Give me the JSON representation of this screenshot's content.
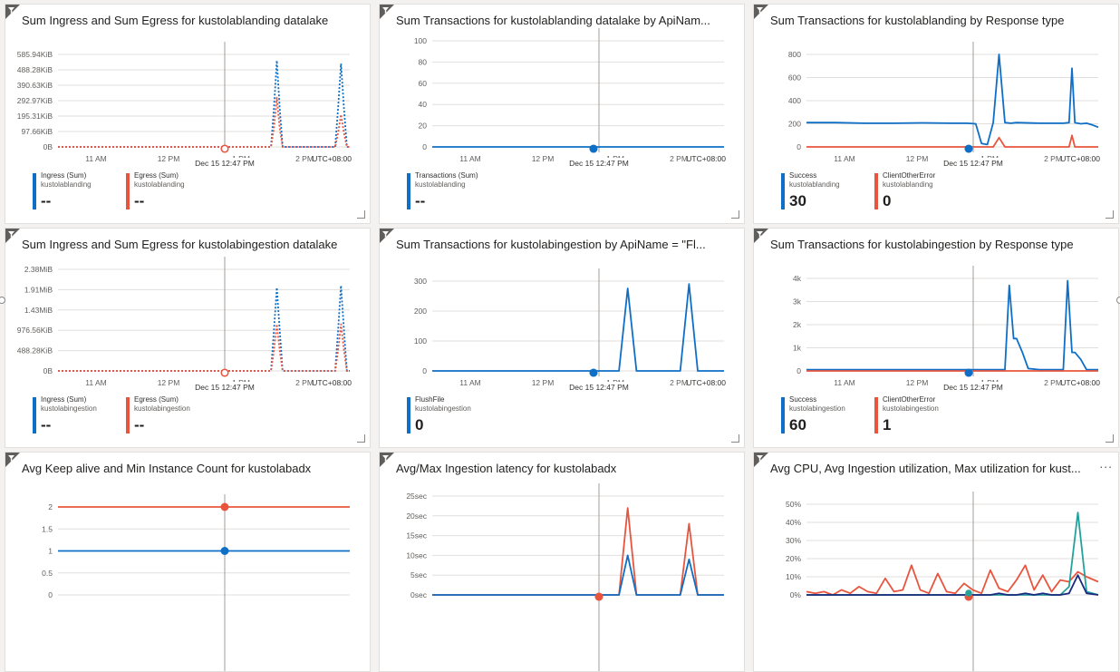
{
  "x_ticks": [
    "11 AM",
    "12 PM",
    "1 PM",
    "2 PM"
  ],
  "timezone": "UTC+08:00",
  "cursor_label": "Dec 15 12:47 PM",
  "more_label": "...",
  "colors": {
    "blue": "#0f6fc6",
    "red": "#e8553e",
    "teal": "#23a29b",
    "navy": "#1b2a7e",
    "grid": "#e1dfdd",
    "cursor": "#a19f9d"
  },
  "tiles": [
    {
      "title": "Sum Ingress and Sum Egress for kustolablanding datalake",
      "chart_data": {
        "type": "line",
        "y_ticks": [
          "585.94KiB",
          "488.28KiB",
          "390.63KiB",
          "292.97KiB",
          "195.31KiB",
          "97.66KiB",
          "0B"
        ],
        "ylim": [
          0,
          600
        ],
        "x": [
          0,
          72,
          73,
          74,
          75,
          76,
          77,
          78,
          85,
          95,
          96,
          97,
          98,
          99,
          100
        ],
        "series": [
          {
            "name": "Ingress (Sum)",
            "sub": "kustolablanding",
            "value": "--",
            "color": "#0f6fc6",
            "dashed": true,
            "values": [
              0,
              0,
              0,
              250,
              560,
              250,
              0,
              0,
              0,
              0,
              250,
              540,
              250,
              0,
              0
            ]
          },
          {
            "name": "Egress (Sum)",
            "sub": "kustolablanding",
            "value": "--",
            "color": "#e8553e",
            "dashed": true,
            "values": [
              0,
              0,
              0,
              120,
              320,
              120,
              0,
              0,
              0,
              0,
              90,
              210,
              90,
              0,
              0
            ]
          }
        ]
      }
    },
    {
      "title": "Sum Transactions for kustolablanding datalake by ApiNam...",
      "chart_data": {
        "type": "line",
        "y_ticks": [
          "100",
          "80",
          "60",
          "40",
          "20",
          "0"
        ],
        "ylim": [
          0,
          100
        ],
        "x": [
          0,
          100
        ],
        "series": [
          {
            "name": "Transactions (Sum)",
            "sub": "kustolablanding",
            "value": "--",
            "color": "#0f6fc6",
            "dashed": false,
            "values": [
              0,
              0
            ]
          }
        ]
      }
    },
    {
      "title": "Sum Transactions for kustolablanding by Response type",
      "chart_data": {
        "type": "line",
        "y_ticks": [
          "800",
          "600",
          "400",
          "200",
          "0"
        ],
        "ylim": [
          0,
          800
        ],
        "x": [
          0,
          10,
          20,
          30,
          40,
          50,
          55,
          58,
          60,
          62,
          64,
          66,
          68,
          70,
          72,
          80,
          88,
          90,
          91,
          92,
          94,
          96,
          98,
          100
        ],
        "series": [
          {
            "name": "Success",
            "sub": "kustolablanding",
            "value": "30",
            "color": "#0f6fc6",
            "dashed": false,
            "values": [
              210,
              210,
              205,
              205,
              208,
              205,
              205,
              200,
              30,
              20,
              210,
              800,
              210,
              205,
              210,
              205,
              205,
              210,
              680,
              210,
              200,
              205,
              190,
              170
            ]
          },
          {
            "name": "ClientOtherError",
            "sub": "kustolablanding",
            "value": "0",
            "color": "#e8553e",
            "dashed": false,
            "values": [
              0,
              0,
              0,
              0,
              0,
              0,
              0,
              0,
              0,
              0,
              0,
              80,
              0,
              0,
              0,
              0,
              0,
              0,
              100,
              0,
              0,
              0,
              0,
              0
            ]
          }
        ]
      }
    },
    {
      "title": "Sum Ingress and Sum Egress for kustolabingestion datalake",
      "chart_data": {
        "type": "line",
        "y_ticks": [
          "2.38MiB",
          "1.91MiB",
          "1.43MiB",
          "976.56KiB",
          "488.28KiB",
          "0B"
        ],
        "ylim": [
          0,
          2500
        ],
        "x": [
          0,
          72,
          73,
          74,
          75,
          76,
          77,
          78,
          85,
          95,
          96,
          97,
          98,
          99,
          100
        ],
        "series": [
          {
            "name": "Ingress (Sum)",
            "sub": "kustolabingestion",
            "value": "--",
            "color": "#0f6fc6",
            "dashed": true,
            "values": [
              0,
              0,
              0,
              1000,
              2050,
              1000,
              0,
              0,
              0,
              0,
              1000,
              2100,
              1000,
              0,
              0
            ]
          },
          {
            "name": "Egress (Sum)",
            "sub": "kustolabingestion",
            "value": "--",
            "color": "#e8553e",
            "dashed": true,
            "values": [
              0,
              0,
              0,
              500,
              1150,
              500,
              0,
              0,
              0,
              0,
              500,
              1150,
              500,
              0,
              0
            ]
          }
        ]
      }
    },
    {
      "title": "Sum Transactions for kustolabingestion by ApiName = \"Fl...",
      "chart_data": {
        "type": "line",
        "y_ticks": [
          "300",
          "200",
          "100",
          "0"
        ],
        "ylim": [
          0,
          310
        ],
        "x": [
          0,
          60,
          64,
          67,
          70,
          80,
          85,
          88,
          91,
          95,
          100
        ],
        "series": [
          {
            "name": "FlushFile",
            "sub": "kustolabingestion",
            "value": "0",
            "color": "#0f6fc6",
            "dashed": false,
            "values": [
              0,
              0,
              0,
              285,
              0,
              0,
              0,
              300,
              0,
              0,
              0
            ]
          }
        ]
      }
    },
    {
      "title": "Sum Transactions for kustolabingestion by Response type",
      "chart_data": {
        "type": "line",
        "y_ticks": [
          "4k",
          "3k",
          "2k",
          "1k",
          "0"
        ],
        "ylim": [
          0,
          4000
        ],
        "x": [
          0,
          40,
          60,
          63,
          66,
          68,
          69.5,
          71,
          72,
          74,
          76,
          80,
          88,
          89.5,
          91,
          92,
          94,
          96,
          98,
          100
        ],
        "series": [
          {
            "name": "Success",
            "sub": "kustolabingestion",
            "value": "60",
            "color": "#0f6fc6",
            "dashed": false,
            "values": [
              50,
              50,
              50,
              50,
              50,
              50,
              3700,
              1400,
              1400,
              800,
              100,
              50,
              50,
              3900,
              800,
              800,
              500,
              50,
              50,
              50
            ]
          },
          {
            "name": "ClientOtherError",
            "sub": "kustolabingestion",
            "value": "1",
            "color": "#e8553e",
            "dashed": false,
            "values": [
              0,
              0,
              0,
              0,
              0,
              0,
              0,
              0,
              0,
              0,
              0,
              0,
              0,
              0,
              0,
              0,
              0,
              0,
              0,
              0
            ]
          }
        ]
      }
    },
    {
      "title": "Avg Keep alive and Min Instance Count for kustolabadx",
      "chart_data": {
        "type": "line",
        "y_ticks": [
          "2",
          "1.5",
          "1",
          "0.5",
          "0"
        ],
        "ylim": [
          0,
          2
        ],
        "x": [
          0,
          100
        ],
        "series": [
          {
            "name": "",
            "color": "#e8553e",
            "values": [
              2,
              2
            ]
          },
          {
            "name": "",
            "color": "#0f6fc6",
            "values": [
              1,
              1
            ]
          }
        ]
      }
    },
    {
      "title": "Avg/Max Ingestion latency for kustolabadx",
      "chart_data": {
        "type": "line",
        "y_ticks": [
          "25sec",
          "20sec",
          "15sec",
          "10sec",
          "5sec",
          "0sec"
        ],
        "ylim": [
          0,
          25
        ],
        "x": [
          0,
          60,
          64,
          67,
          70,
          80,
          85,
          88,
          91,
          95,
          100
        ],
        "series": [
          {
            "name": "",
            "color": "#e8553e",
            "values": [
              0,
              0,
              0,
              22,
              0,
              0,
              0,
              18,
              0,
              0,
              0
            ]
          },
          {
            "name": "",
            "color": "#0f6fc6",
            "values": [
              0,
              0,
              0,
              10,
              0,
              0,
              0,
              9,
              0,
              0,
              0
            ]
          }
        ]
      }
    },
    {
      "title": "Avg CPU, Avg Ingestion utilization, Max utilization for kust...",
      "chart_data": {
        "type": "line",
        "y_ticks": [
          "50%",
          "40%",
          "30%",
          "20%",
          "10%",
          "0%"
        ],
        "ylim": [
          0,
          55
        ],
        "x": [
          0,
          3,
          6,
          9,
          12,
          15,
          18,
          21,
          24,
          27,
          30,
          33,
          36,
          39,
          42,
          45,
          48,
          51,
          54,
          57,
          60,
          63,
          66,
          69,
          72,
          75,
          78,
          81,
          84,
          87,
          90,
          93,
          96,
          100
        ],
        "series": [
          {
            "name": "",
            "color": "#e8553e",
            "values": [
              2,
              1,
              2,
              0,
              3,
              1,
              5,
              2,
              1,
              10,
              2,
              3,
              18,
              3,
              1,
              13,
              2,
              1,
              7,
              3,
              1,
              15,
              4,
              2,
              9,
              18,
              3,
              12,
              2,
              9,
              8,
              14,
              11,
              8
            ]
          },
          {
            "name": "",
            "color": "#23a29b",
            "values": [
              0,
              0,
              0,
              0,
              0,
              0,
              0,
              0,
              0,
              0,
              0,
              0,
              0,
              0,
              0,
              0,
              0,
              0,
              0,
              0,
              0,
              0,
              0,
              0,
              0,
              0,
              0,
              0,
              0,
              0,
              5,
              50,
              2,
              0
            ]
          },
          {
            "name": "",
            "color": "#1b2a7e",
            "values": [
              0,
              0,
              0,
              0,
              0,
              0,
              0,
              0,
              0,
              0,
              0,
              0,
              0,
              0,
              0,
              0,
              0,
              0,
              0,
              0,
              0,
              0,
              1,
              0,
              0,
              1,
              0,
              1,
              0,
              0,
              1,
              12,
              1,
              0
            ]
          }
        ]
      }
    }
  ]
}
